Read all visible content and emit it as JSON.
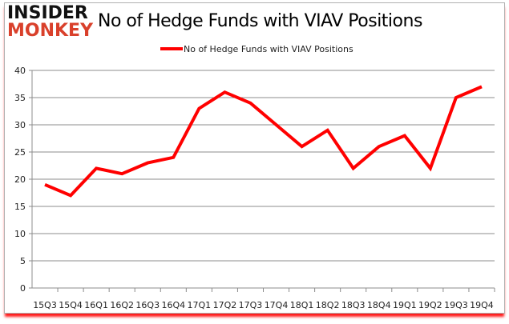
{
  "logo": {
    "line1": "INSIDER",
    "line2": "MONKEY"
  },
  "chart_data": {
    "type": "line",
    "title": "No of Hedge Funds with VIAV Positions",
    "categories": [
      "15Q3",
      "15Q4",
      "16Q1",
      "16Q2",
      "16Q3",
      "16Q4",
      "17Q1",
      "17Q2",
      "17Q3",
      "17Q4",
      "18Q1",
      "18Q2",
      "18Q3",
      "18Q4",
      "19Q1",
      "19Q2",
      "19Q3",
      "19Q4"
    ],
    "series": [
      {
        "name": "No of Hedge Funds with VIAV Positions",
        "values": [
          19,
          17,
          22,
          21,
          23,
          24,
          33,
          36,
          34,
          30,
          26,
          29,
          22,
          26,
          28,
          22,
          35,
          37
        ],
        "color": "#ff0000"
      }
    ],
    "ylim": [
      0,
      40
    ],
    "yticks": [
      0,
      5,
      10,
      15,
      20,
      25,
      30,
      35,
      40
    ],
    "grid": true,
    "legend": "top-center"
  }
}
